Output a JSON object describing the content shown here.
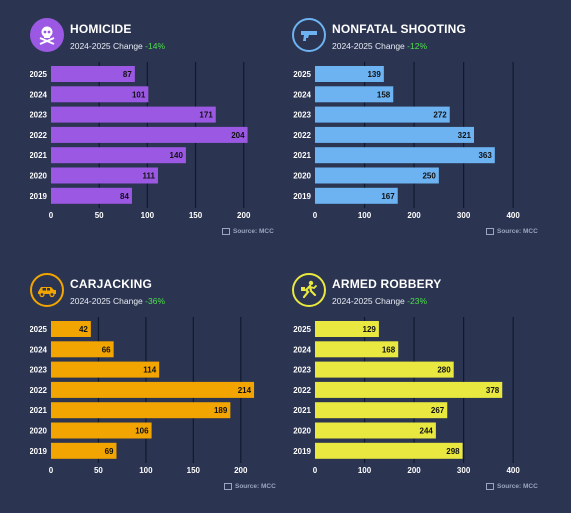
{
  "colors": {
    "background": "#2b3450",
    "change_negative": "#4ee04e",
    "gridline": "#0f1a2e"
  },
  "chart_data": [
    {
      "id": "homicide",
      "type": "bar",
      "orientation": "horizontal",
      "title": "HOMICIDE",
      "subtitle_prefix": "2024-2025 Change",
      "change": "-14%",
      "icon": "skull-crossbones-icon",
      "color": "#9b59e3",
      "categories": [
        "2025",
        "2024",
        "2023",
        "2022",
        "2021",
        "2020",
        "2019"
      ],
      "values": [
        87,
        101,
        171,
        204,
        140,
        111,
        84
      ],
      "xticks": [
        0,
        50,
        100,
        150,
        200
      ],
      "xlim": [
        0,
        220
      ],
      "source": "Source: MCC"
    },
    {
      "id": "nonfatal-shooting",
      "type": "bar",
      "orientation": "horizontal",
      "title": "NONFATAL SHOOTING",
      "subtitle_prefix": "2024-2025 Change",
      "change": "-12%",
      "icon": "handgun-icon",
      "color": "#6db3f2",
      "categories": [
        "2025",
        "2024",
        "2023",
        "2022",
        "2021",
        "2020",
        "2019"
      ],
      "values": [
        139,
        158,
        272,
        321,
        363,
        250,
        167
      ],
      "xticks": [
        0,
        100,
        200,
        300,
        400
      ],
      "xlim": [
        0,
        430
      ],
      "source": "Source: MCC"
    },
    {
      "id": "carjacking",
      "type": "bar",
      "orientation": "horizontal",
      "title": "CARJACKING",
      "subtitle_prefix": "2024-2025 Change",
      "change": "-36%",
      "icon": "car-icon",
      "color": "#f2a500",
      "categories": [
        "2025",
        "2024",
        "2023",
        "2022",
        "2021",
        "2020",
        "2019"
      ],
      "values": [
        42,
        66,
        114,
        214,
        189,
        106,
        69
      ],
      "xticks": [
        0,
        50,
        100,
        150,
        200
      ],
      "xlim": [
        0,
        235
      ],
      "source": "Source: MCC"
    },
    {
      "id": "armed-robbery",
      "type": "bar",
      "orientation": "horizontal",
      "title": "ARMED ROBBERY",
      "subtitle_prefix": "2024-2025 Change",
      "change": "-23%",
      "icon": "running-thief-icon",
      "color": "#e8e840",
      "categories": [
        "2025",
        "2024",
        "2023",
        "2022",
        "2021",
        "2020",
        "2019"
      ],
      "values": [
        129,
        168,
        280,
        378,
        267,
        244,
        298
      ],
      "xticks": [
        0,
        100,
        200,
        300,
        400
      ],
      "xlim": [
        0,
        430
      ],
      "source": "Source: MCC"
    }
  ]
}
